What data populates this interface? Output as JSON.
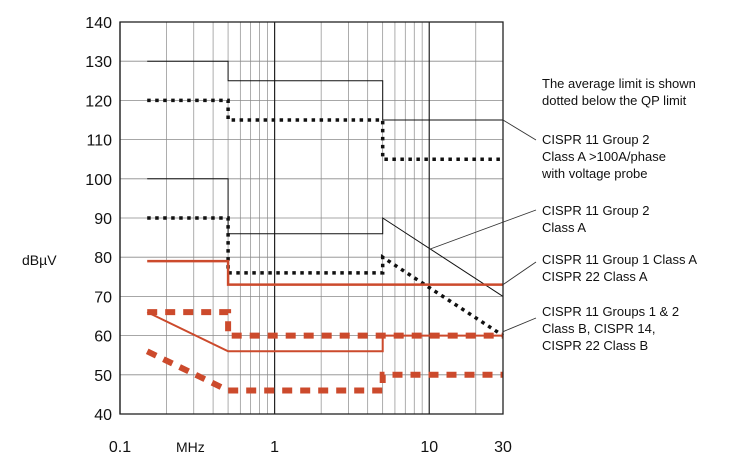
{
  "chart_data": {
    "type": "line",
    "ylabel": "dBµV",
    "xunit": "MHz",
    "x_scale": "log",
    "xlim": [
      0.1,
      30
    ],
    "ylim": [
      40,
      140
    ],
    "grid": true,
    "y_ticks": [
      "40",
      "50",
      "60",
      "70",
      "80",
      "90",
      "100",
      "110",
      "120",
      "130",
      "140"
    ],
    "x_ticks": [
      {
        "value": 0.1,
        "label": "0.1"
      },
      {
        "value": 1,
        "label": "1"
      },
      {
        "value": 10,
        "label": "10"
      },
      {
        "value": 30,
        "label": "30"
      }
    ],
    "series": [
      {
        "color": "#111111",
        "style": "solid",
        "width": 1,
        "points": [
          [
            0.15,
            130
          ],
          [
            0.5,
            130
          ],
          [
            0.5,
            125
          ],
          [
            5,
            125
          ],
          [
            5,
            115
          ],
          [
            30,
            115
          ]
        ]
      },
      {
        "color": "#111111",
        "style": "dotted",
        "width": 3.5,
        "points": [
          [
            0.15,
            120
          ],
          [
            0.5,
            120
          ],
          [
            0.5,
            115
          ],
          [
            5,
            115
          ],
          [
            5,
            105
          ],
          [
            30,
            105
          ]
        ]
      },
      {
        "color": "#111111",
        "style": "solid",
        "width": 1,
        "points": [
          [
            0.15,
            100
          ],
          [
            0.5,
            100
          ],
          [
            0.5,
            86
          ],
          [
            5,
            86
          ],
          [
            5,
            90
          ],
          [
            30,
            70
          ]
        ]
      },
      {
        "color": "#111111",
        "style": "dotted",
        "width": 3.5,
        "points": [
          [
            0.15,
            90
          ],
          [
            0.5,
            90
          ],
          [
            0.5,
            76
          ],
          [
            5,
            76
          ],
          [
            5,
            80
          ],
          [
            30,
            60
          ]
        ]
      },
      {
        "color": "#cc4a2c",
        "style": "solid",
        "width": 2.5,
        "points": [
          [
            0.15,
            79
          ],
          [
            0.5,
            79
          ],
          [
            0.5,
            73
          ],
          [
            30,
            73
          ]
        ]
      },
      {
        "color": "#cc4a2c",
        "style": "dashed",
        "width": 6,
        "points": [
          [
            0.15,
            66
          ],
          [
            0.5,
            66
          ],
          [
            0.5,
            60
          ],
          [
            30,
            60
          ]
        ]
      },
      {
        "color": "#cc4a2c",
        "style": "solid",
        "width": 2,
        "points": [
          [
            0.15,
            66
          ],
          [
            0.5,
            56
          ],
          [
            5,
            56
          ],
          [
            5,
            60
          ],
          [
            30,
            60
          ]
        ]
      },
      {
        "color": "#cc4a2c",
        "style": "dashed",
        "width": 6,
        "points": [
          [
            0.15,
            56
          ],
          [
            0.5,
            46
          ],
          [
            5,
            46
          ],
          [
            5,
            50
          ],
          [
            30,
            50
          ]
        ]
      }
    ],
    "annotations": [
      {
        "lines": [
          "The average limit is shown",
          "dotted below the QP limit"
        ]
      },
      {
        "lines": [
          "CISPR 11 Group 2",
          "Class A >100A/phase",
          "with voltage probe"
        ],
        "target": [
          30,
          115
        ]
      },
      {
        "lines": [
          "CISPR 11 Group 2",
          "Class A"
        ],
        "target": [
          10,
          82
        ]
      },
      {
        "lines": [
          "CISPR 11 Group 1 Class A",
          "CISPR 22 Class A"
        ],
        "target": [
          30,
          73
        ]
      },
      {
        "lines": [
          "CISPR 11 Groups 1 & 2",
          "Class B, CISPR 14,",
          "CISPR 22 Class B"
        ],
        "target": [
          30,
          61
        ]
      }
    ]
  }
}
